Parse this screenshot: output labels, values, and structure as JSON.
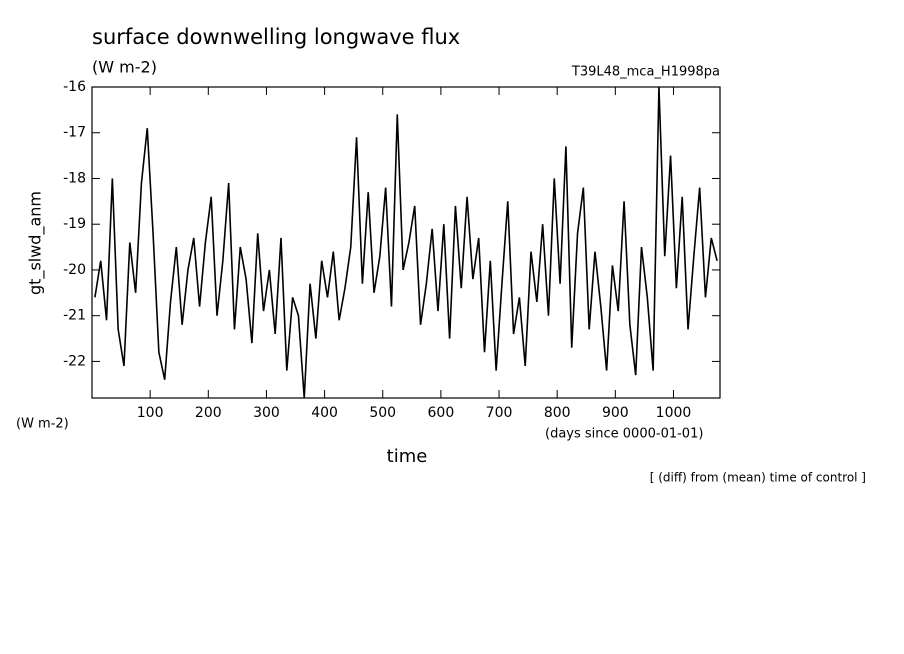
{
  "chart_data": {
    "type": "line",
    "title": "surface downwelling longwave flux",
    "subtitle": "(W m-2)",
    "run_label": "T39L48_mca_H1998pa",
    "y_label": "gt_slwd_anm",
    "y_units": "(W m-2)",
    "x_label": "time",
    "x_units": "(days since 0000-01-01)",
    "note": "[ (diff) from (mean) time of control ]",
    "xlim": [
      0,
      1080
    ],
    "ylim": [
      -22.8,
      -16
    ],
    "xticks": [
      100,
      200,
      300,
      400,
      500,
      600,
      700,
      800,
      900,
      1000
    ],
    "yticks": [
      -16,
      -17,
      -18,
      -19,
      -20,
      -21,
      -22
    ],
    "x": [
      5,
      15,
      25,
      35,
      45,
      55,
      65,
      75,
      85,
      95,
      105,
      115,
      125,
      135,
      145,
      155,
      165,
      175,
      185,
      195,
      205,
      215,
      225,
      235,
      245,
      255,
      265,
      275,
      285,
      295,
      305,
      315,
      325,
      335,
      345,
      355,
      365,
      375,
      385,
      395,
      405,
      415,
      425,
      435,
      445,
      455,
      465,
      475,
      485,
      495,
      505,
      515,
      525,
      535,
      545,
      555,
      565,
      575,
      585,
      595,
      605,
      615,
      625,
      635,
      645,
      655,
      665,
      675,
      685,
      695,
      705,
      715,
      725,
      735,
      745,
      755,
      765,
      775,
      785,
      795,
      805,
      815,
      825,
      835,
      845,
      855,
      865,
      875,
      885,
      895,
      905,
      915,
      925,
      935,
      945,
      955,
      965,
      975,
      985,
      995,
      1005,
      1015,
      1025,
      1035,
      1045,
      1055,
      1065,
      1075
    ],
    "series": [
      {
        "name": "gt_slwd_anm",
        "color": "#000000",
        "values": [
          -20.6,
          -19.8,
          -21.1,
          -18.0,
          -21.3,
          -22.1,
          -19.4,
          -20.5,
          -18.1,
          -16.9,
          -19.2,
          -21.8,
          -22.4,
          -20.7,
          -19.5,
          -21.2,
          -20.0,
          -19.3,
          -20.8,
          -19.4,
          -18.4,
          -21.0,
          -19.8,
          -18.1,
          -21.3,
          -19.5,
          -20.2,
          -21.6,
          -19.2,
          -20.9,
          -20.0,
          -21.4,
          -19.3,
          -22.2,
          -20.6,
          -21.0,
          -22.8,
          -20.3,
          -21.5,
          -19.8,
          -20.6,
          -19.6,
          -21.1,
          -20.4,
          -19.5,
          -17.1,
          -20.3,
          -18.3,
          -20.5,
          -19.7,
          -18.2,
          -20.8,
          -16.6,
          -20.0,
          -19.4,
          -18.6,
          -21.2,
          -20.3,
          -19.1,
          -20.9,
          -19.0,
          -21.5,
          -18.6,
          -20.4,
          -18.4,
          -20.2,
          -19.3,
          -21.8,
          -19.8,
          -22.2,
          -20.3,
          -18.5,
          -21.4,
          -20.6,
          -22.1,
          -19.6,
          -20.7,
          -19.0,
          -21.0,
          -18.0,
          -20.3,
          -17.3,
          -21.7,
          -19.2,
          -18.2,
          -21.3,
          -19.6,
          -20.8,
          -22.2,
          -19.9,
          -20.9,
          -18.5,
          -21.2,
          -22.3,
          -19.5,
          -20.6,
          -22.2,
          -16.0,
          -19.7,
          -17.5,
          -20.4,
          -18.4,
          -21.3,
          -19.7,
          -18.2,
          -20.6,
          -19.3,
          -19.8
        ]
      }
    ]
  }
}
